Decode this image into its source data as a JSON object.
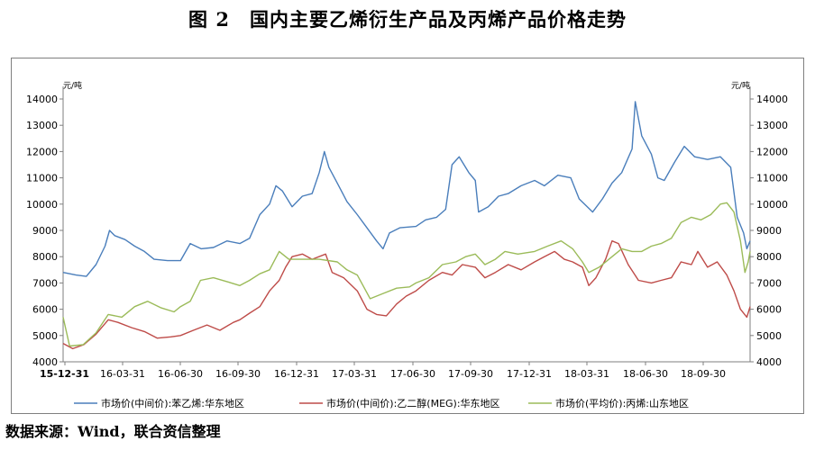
{
  "figure_title": "图 2　国内主要乙烯衍生产品及丙烯产品价格走势",
  "source_note": "数据来源：Wind，联合资信整理",
  "chart_data": {
    "type": "line",
    "title": "",
    "unit_left": "元/吨",
    "unit_right": "元/吨",
    "ylim": [
      4000,
      14000
    ],
    "y_ticks": [
      4000,
      5000,
      6000,
      7000,
      8000,
      9000,
      10000,
      11000,
      12000,
      13000,
      14000
    ],
    "x_tick_labels": [
      "15-12-31",
      "16-03-31",
      "16-06-30",
      "16-09-30",
      "16-12-31",
      "17-03-31",
      "17-06-30",
      "17-09-30",
      "17-12-31",
      "18-03-31",
      "18-06-30",
      "18-09-30"
    ],
    "x_range": [
      "2015-12-31",
      "2018-11-30"
    ],
    "grid": false,
    "legend_position": "bottom",
    "series": [
      {
        "name": "市场价(中间价):苯乙烯:华东地区",
        "color": "#4a7ebb",
        "points": [
          [
            "2015-12-31",
            7400
          ],
          [
            "2016-01-20",
            7300
          ],
          [
            "2016-02-05",
            7250
          ],
          [
            "2016-02-20",
            7700
          ],
          [
            "2016-03-05",
            8400
          ],
          [
            "2016-03-12",
            9000
          ],
          [
            "2016-03-20",
            8800
          ],
          [
            "2016-04-05",
            8650
          ],
          [
            "2016-04-20",
            8400
          ],
          [
            "2016-05-05",
            8200
          ],
          [
            "2016-05-20",
            7900
          ],
          [
            "2016-06-10",
            7850
          ],
          [
            "2016-06-30",
            7850
          ],
          [
            "2016-07-15",
            8500
          ],
          [
            "2016-08-01",
            8300
          ],
          [
            "2016-08-20",
            8350
          ],
          [
            "2016-09-10",
            8600
          ],
          [
            "2016-09-30",
            8500
          ],
          [
            "2016-10-15",
            8700
          ],
          [
            "2016-10-31",
            9600
          ],
          [
            "2016-11-15",
            10000
          ],
          [
            "2016-11-25",
            10700
          ],
          [
            "2016-12-05",
            10500
          ],
          [
            "2016-12-20",
            9900
          ],
          [
            "2017-01-05",
            10300
          ],
          [
            "2017-01-20",
            10400
          ],
          [
            "2017-01-31",
            11200
          ],
          [
            "2017-02-08",
            12000
          ],
          [
            "2017-02-15",
            11400
          ],
          [
            "2017-02-28",
            10800
          ],
          [
            "2017-03-15",
            10100
          ],
          [
            "2017-03-31",
            9600
          ],
          [
            "2017-04-15",
            9100
          ],
          [
            "2017-04-30",
            8600
          ],
          [
            "2017-05-10",
            8300
          ],
          [
            "2017-05-20",
            8900
          ],
          [
            "2017-06-05",
            9100
          ],
          [
            "2017-06-30",
            9150
          ],
          [
            "2017-07-15",
            9400
          ],
          [
            "2017-08-01",
            9500
          ],
          [
            "2017-08-15",
            9800
          ],
          [
            "2017-08-25",
            11500
          ],
          [
            "2017-09-05",
            11800
          ],
          [
            "2017-09-20",
            11200
          ],
          [
            "2017-09-30",
            10900
          ],
          [
            "2017-10-05",
            9700
          ],
          [
            "2017-10-20",
            9900
          ],
          [
            "2017-11-05",
            10300
          ],
          [
            "2017-11-20",
            10400
          ],
          [
            "2017-12-10",
            10700
          ],
          [
            "2017-12-31",
            10900
          ],
          [
            "2018-01-15",
            10700
          ],
          [
            "2018-02-05",
            11100
          ],
          [
            "2018-02-25",
            11000
          ],
          [
            "2018-03-10",
            10200
          ],
          [
            "2018-03-31",
            9700
          ],
          [
            "2018-04-15",
            10200
          ],
          [
            "2018-04-30",
            10800
          ],
          [
            "2018-05-15",
            11200
          ],
          [
            "2018-05-31",
            12100
          ],
          [
            "2018-06-05",
            13900
          ],
          [
            "2018-06-15",
            12600
          ],
          [
            "2018-06-30",
            11900
          ],
          [
            "2018-07-10",
            11000
          ],
          [
            "2018-07-20",
            10900
          ],
          [
            "2018-08-05",
            11600
          ],
          [
            "2018-08-20",
            12200
          ],
          [
            "2018-09-05",
            11800
          ],
          [
            "2018-09-25",
            11700
          ],
          [
            "2018-10-15",
            11800
          ],
          [
            "2018-10-31",
            11400
          ],
          [
            "2018-11-10",
            9500
          ],
          [
            "2018-11-20",
            8900
          ],
          [
            "2018-11-25",
            8300
          ],
          [
            "2018-11-30",
            8600
          ]
        ]
      },
      {
        "name": "市场价(中间价):乙二醇(MEG):华东地区",
        "color": "#be4b48",
        "points": [
          [
            "2015-12-31",
            4700
          ],
          [
            "2016-01-15",
            4500
          ],
          [
            "2016-02-01",
            4650
          ],
          [
            "2016-02-20",
            5050
          ],
          [
            "2016-03-10",
            5600
          ],
          [
            "2016-03-25",
            5500
          ],
          [
            "2016-04-15",
            5300
          ],
          [
            "2016-05-05",
            5150
          ],
          [
            "2016-05-25",
            4900
          ],
          [
            "2016-06-15",
            4950
          ],
          [
            "2016-06-30",
            5000
          ],
          [
            "2016-07-20",
            5200
          ],
          [
            "2016-08-10",
            5400
          ],
          [
            "2016-08-30",
            5200
          ],
          [
            "2016-09-20",
            5500
          ],
          [
            "2016-09-30",
            5600
          ],
          [
            "2016-10-15",
            5850
          ],
          [
            "2016-10-31",
            6100
          ],
          [
            "2016-11-15",
            6700
          ],
          [
            "2016-11-30",
            7100
          ],
          [
            "2016-12-10",
            7600
          ],
          [
            "2016-12-20",
            8000
          ],
          [
            "2017-01-05",
            8100
          ],
          [
            "2017-01-20",
            7900
          ],
          [
            "2017-02-10",
            8100
          ],
          [
            "2017-02-20",
            7400
          ],
          [
            "2017-03-10",
            7200
          ],
          [
            "2017-03-31",
            6700
          ],
          [
            "2017-04-15",
            6000
          ],
          [
            "2017-04-30",
            5800
          ],
          [
            "2017-05-15",
            5750
          ],
          [
            "2017-05-31",
            6200
          ],
          [
            "2017-06-15",
            6500
          ],
          [
            "2017-06-30",
            6700
          ],
          [
            "2017-07-20",
            7100
          ],
          [
            "2017-08-10",
            7400
          ],
          [
            "2017-08-25",
            7300
          ],
          [
            "2017-09-10",
            7700
          ],
          [
            "2017-09-30",
            7600
          ],
          [
            "2017-10-15",
            7200
          ],
          [
            "2017-10-31",
            7400
          ],
          [
            "2017-11-20",
            7700
          ],
          [
            "2017-12-10",
            7500
          ],
          [
            "2017-12-31",
            7800
          ],
          [
            "2018-01-15",
            8000
          ],
          [
            "2018-01-31",
            8200
          ],
          [
            "2018-02-15",
            7900
          ],
          [
            "2018-02-28",
            7800
          ],
          [
            "2018-03-15",
            7600
          ],
          [
            "2018-03-25",
            6900
          ],
          [
            "2018-04-05",
            7200
          ],
          [
            "2018-04-20",
            7900
          ],
          [
            "2018-04-30",
            8600
          ],
          [
            "2018-05-10",
            8500
          ],
          [
            "2018-05-25",
            7700
          ],
          [
            "2018-06-10",
            7100
          ],
          [
            "2018-06-30",
            7000
          ],
          [
            "2018-07-15",
            7100
          ],
          [
            "2018-07-31",
            7200
          ],
          [
            "2018-08-15",
            7800
          ],
          [
            "2018-08-31",
            7700
          ],
          [
            "2018-09-10",
            8200
          ],
          [
            "2018-09-25",
            7600
          ],
          [
            "2018-10-10",
            7800
          ],
          [
            "2018-10-25",
            7300
          ],
          [
            "2018-11-05",
            6700
          ],
          [
            "2018-11-15",
            6000
          ],
          [
            "2018-11-25",
            5700
          ],
          [
            "2018-11-30",
            6100
          ]
        ]
      },
      {
        "name": "市场价(平均价):丙烯:山东地区",
        "color": "#9bbb59",
        "points": [
          [
            "2015-12-31",
            5700
          ],
          [
            "2016-01-10",
            4600
          ],
          [
            "2016-01-31",
            4650
          ],
          [
            "2016-02-20",
            5100
          ],
          [
            "2016-03-10",
            5800
          ],
          [
            "2016-03-31",
            5700
          ],
          [
            "2016-04-20",
            6100
          ],
          [
            "2016-05-10",
            6300
          ],
          [
            "2016-05-31",
            6050
          ],
          [
            "2016-06-20",
            5900
          ],
          [
            "2016-06-30",
            6100
          ],
          [
            "2016-07-15",
            6300
          ],
          [
            "2016-07-31",
            7100
          ],
          [
            "2016-08-20",
            7200
          ],
          [
            "2016-09-10",
            7050
          ],
          [
            "2016-09-30",
            6900
          ],
          [
            "2016-10-15",
            7100
          ],
          [
            "2016-10-31",
            7350
          ],
          [
            "2016-11-15",
            7500
          ],
          [
            "2016-11-30",
            8200
          ],
          [
            "2016-12-15",
            7900
          ],
          [
            "2016-12-31",
            7900
          ],
          [
            "2017-01-31",
            7900
          ],
          [
            "2017-02-28",
            7800
          ],
          [
            "2017-03-15",
            7500
          ],
          [
            "2017-03-31",
            7300
          ],
          [
            "2017-04-20",
            6400
          ],
          [
            "2017-05-10",
            6600
          ],
          [
            "2017-05-31",
            6800
          ],
          [
            "2017-06-20",
            6850
          ],
          [
            "2017-06-30",
            7000
          ],
          [
            "2017-07-20",
            7200
          ],
          [
            "2017-08-10",
            7700
          ],
          [
            "2017-08-31",
            7800
          ],
          [
            "2017-09-15",
            8000
          ],
          [
            "2017-09-30",
            8100
          ],
          [
            "2017-10-15",
            7700
          ],
          [
            "2017-10-31",
            7900
          ],
          [
            "2017-11-15",
            8200
          ],
          [
            "2017-12-05",
            8100
          ],
          [
            "2017-12-31",
            8200
          ],
          [
            "2018-01-20",
            8400
          ],
          [
            "2018-02-10",
            8600
          ],
          [
            "2018-02-28",
            8300
          ],
          [
            "2018-03-15",
            7800
          ],
          [
            "2018-03-25",
            7400
          ],
          [
            "2018-04-10",
            7600
          ],
          [
            "2018-04-30",
            8000
          ],
          [
            "2018-05-15",
            8300
          ],
          [
            "2018-05-31",
            8200
          ],
          [
            "2018-06-15",
            8200
          ],
          [
            "2018-06-30",
            8400
          ],
          [
            "2018-07-15",
            8500
          ],
          [
            "2018-07-31",
            8700
          ],
          [
            "2018-08-15",
            9300
          ],
          [
            "2018-08-31",
            9500
          ],
          [
            "2018-09-15",
            9400
          ],
          [
            "2018-09-30",
            9600
          ],
          [
            "2018-10-15",
            10000
          ],
          [
            "2018-10-25",
            10050
          ],
          [
            "2018-11-05",
            9700
          ],
          [
            "2018-11-15",
            8600
          ],
          [
            "2018-11-22",
            7400
          ],
          [
            "2018-11-27",
            7800
          ],
          [
            "2018-11-30",
            8200
          ]
        ]
      }
    ]
  }
}
